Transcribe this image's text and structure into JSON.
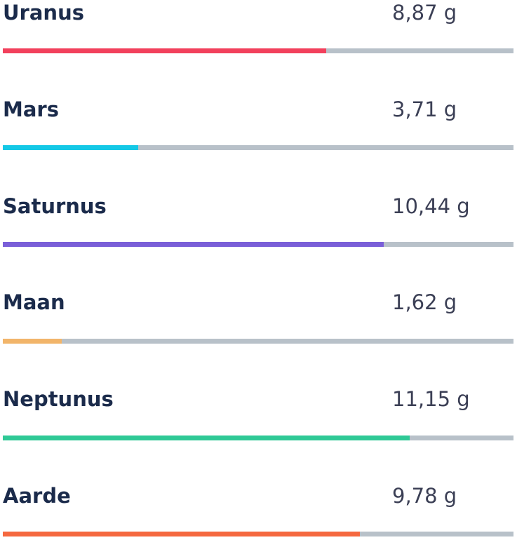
{
  "chart_data": {
    "type": "bar",
    "orientation": "horizontal",
    "unit": "g",
    "max": 14,
    "items": [
      {
        "name": "Uranus",
        "value": 8.87,
        "label": "8,87 g",
        "color": "#f2405c"
      },
      {
        "name": "Mars",
        "value": 3.71,
        "label": "3,71 g",
        "color": "#14c8e6"
      },
      {
        "name": "Saturnus",
        "value": 10.44,
        "label": "10,44 g",
        "color": "#7a5fd8"
      },
      {
        "name": "Maan",
        "value": 1.62,
        "label": "1,62 g",
        "color": "#f2b56a"
      },
      {
        "name": "Neptunus",
        "value": 11.15,
        "label": "11,15 g",
        "color": "#2fc996"
      },
      {
        "name": "Aarde",
        "value": 9.78,
        "label": "9,78 g",
        "color": "#f5683f"
      }
    ],
    "track_color": "#b8c1c9"
  }
}
